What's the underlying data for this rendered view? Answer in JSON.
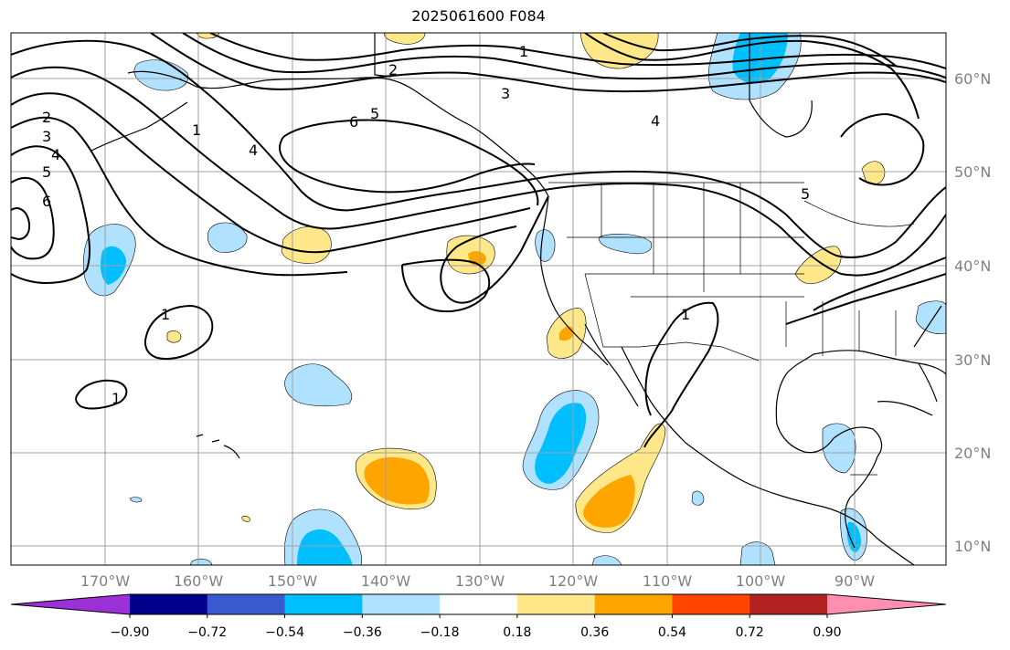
{
  "title": "2025061600 F084",
  "latitudes": [
    "60°N",
    "50°N",
    "40°N",
    "30°N",
    "20°N",
    "10°N"
  ],
  "longitudes": [
    "170°W",
    "160°W",
    "150°W",
    "140°W",
    "130°W",
    "120°W",
    "110°W",
    "100°W",
    "90°W"
  ],
  "colorbar": {
    "labels": [
      "−0.90",
      "−0.72",
      "−0.54",
      "−0.36",
      "−0.18",
      "0.18",
      "0.36",
      "0.54",
      "0.72",
      "0.90"
    ],
    "colors": [
      "#9b30d9",
      "#00008b",
      "#3a5bd0",
      "#00bfff",
      "#b0e2ff",
      "#ffffff",
      "#ffe88a",
      "#ffa500",
      "#ff4500",
      "#b22222",
      "#ff8fb0"
    ]
  },
  "contour_labels": [
    "1",
    "2",
    "3",
    "4",
    "5",
    "6",
    "2",
    "3",
    "4",
    "5",
    "6",
    "1",
    "1",
    "1",
    "5",
    "4",
    "1"
  ]
}
